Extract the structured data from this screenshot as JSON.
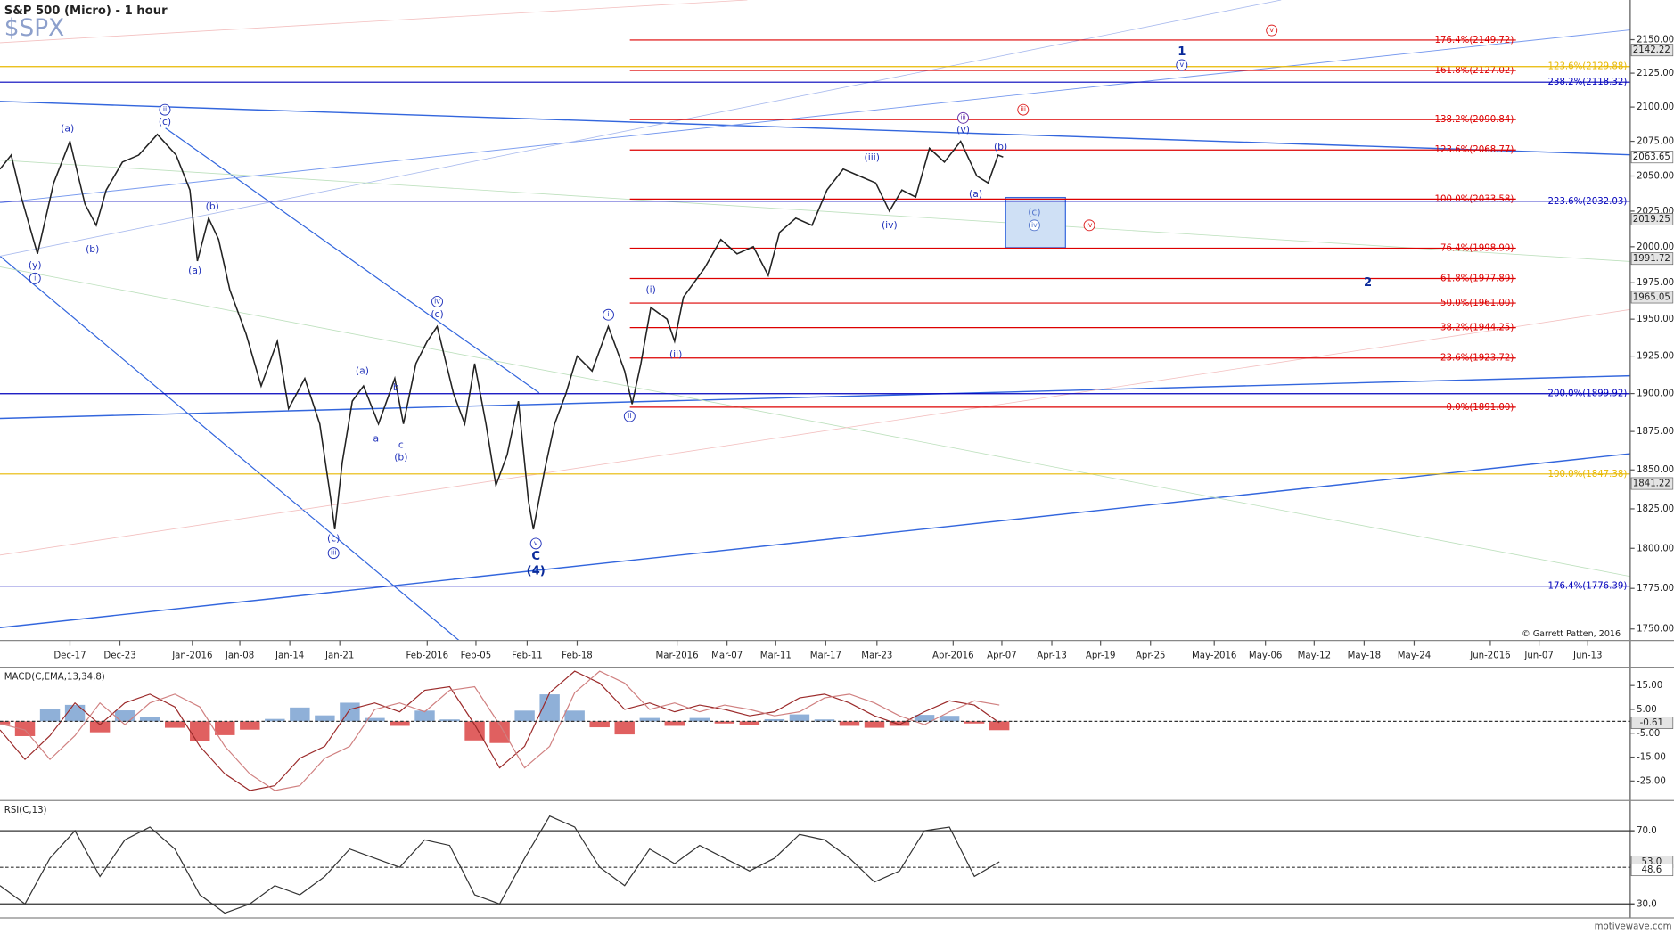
{
  "chart_data": [
    {
      "type": "price",
      "title": "S&P 500 (Micro) - 1 hour",
      "subtitle": "$SPX",
      "log": true,
      "color": "#222222",
      "xlim": [
        0,
        130.5
      ],
      "ylim": [
        1743,
        2180
      ],
      "xticks": [
        {
          "value": 5.6,
          "label": "Dec-17"
        },
        {
          "value": 9.6,
          "label": "Dec-23"
        },
        {
          "value": 15.4,
          "label": "Jan-2016"
        },
        {
          "value": 19.2,
          "label": "Jan-08"
        },
        {
          "value": 23.2,
          "label": "Jan-14"
        },
        {
          "value": 27.2,
          "label": "Jan-21"
        },
        {
          "value": 34.2,
          "label": "Feb-2016"
        },
        {
          "value": 38.1,
          "label": "Feb-05"
        },
        {
          "value": 42.2,
          "label": "Feb-11"
        },
        {
          "value": 46.2,
          "label": "Feb-18"
        },
        {
          "value": 54.2,
          "label": "Mar-2016"
        },
        {
          "value": 58.2,
          "label": "Mar-07"
        },
        {
          "value": 62.1,
          "label": "Mar-11"
        },
        {
          "value": 66.1,
          "label": "Mar-17"
        },
        {
          "value": 70.2,
          "label": "Mar-23"
        },
        {
          "value": 76.3,
          "label": "Apr-2016"
        },
        {
          "value": 80.2,
          "label": "Apr-07"
        },
        {
          "value": 84.2,
          "label": "Apr-13"
        },
        {
          "value": 88.1,
          "label": "Apr-19"
        },
        {
          "value": 92.1,
          "label": "Apr-25"
        },
        {
          "value": 97.2,
          "label": "May-2016"
        },
        {
          "value": 101.3,
          "label": "May-06"
        },
        {
          "value": 105.2,
          "label": "May-12"
        },
        {
          "value": 109.2,
          "label": "May-18"
        },
        {
          "value": 113.2,
          "label": "May-24"
        },
        {
          "value": 119.3,
          "label": "Jun-2016"
        },
        {
          "value": 123.2,
          "label": "Jun-07"
        },
        {
          "value": 127.1,
          "label": "Jun-13"
        }
      ],
      "yticks": [
        {
          "value": 2150,
          "label": "2150.00"
        },
        {
          "value": 2125,
          "label": "2125.00"
        },
        {
          "value": 2100,
          "label": "2100.00"
        },
        {
          "value": 2075,
          "label": "2075.00"
        },
        {
          "value": 2050,
          "label": "2050.00"
        },
        {
          "value": 2025,
          "label": "2025.00"
        },
        {
          "value": 2000,
          "label": "2000.00"
        },
        {
          "value": 1975,
          "label": "1975.00"
        },
        {
          "value": 1950,
          "label": "1950.00"
        },
        {
          "value": 1925,
          "label": "1925.00"
        },
        {
          "value": 1900,
          "label": "1900.00"
        },
        {
          "value": 1875,
          "label": "1875.00"
        },
        {
          "value": 1850,
          "label": "1850.00"
        },
        {
          "value": 1825,
          "label": "1825.00"
        },
        {
          "value": 1800,
          "label": "1800.00"
        },
        {
          "value": 1775,
          "label": "1775.00"
        },
        {
          "value": 1750,
          "label": "1750.00"
        }
      ],
      "x": [
        0,
        0.9,
        1.7,
        3.0,
        4.3,
        5.6,
        6.8,
        7.7,
        8.5,
        9.8,
        11.1,
        12.6,
        14.1,
        15.2,
        15.8,
        16.7,
        17.5,
        18.4,
        19.7,
        20.9,
        22.2,
        23.1,
        24.4,
        25.6,
        26.5,
        26.8,
        27.4,
        28.2,
        29.1,
        30.3,
        31.6,
        32.3,
        33.3,
        34.2,
        35.0,
        36.3,
        37.2,
        38.0,
        38.9,
        39.7,
        40.6,
        41.5,
        42.3,
        42.7,
        43.6,
        44.4,
        45.3,
        46.2,
        47.4,
        48.7,
        50.0,
        50.6,
        51.3,
        52.1,
        53.4,
        54.0,
        54.7,
        56.4,
        57.7,
        59.0,
        60.3,
        61.5,
        62.4,
        63.7,
        65.0,
        66.2,
        67.5,
        68.8,
        70.1,
        71.2,
        72.2,
        73.3,
        74.4,
        75.6,
        76.9,
        78.2,
        79.1,
        79.9,
        80.3
      ],
      "values": [
        2055,
        2065,
        2035,
        1995,
        2045,
        2075,
        2030,
        2015,
        2040,
        2060,
        2065,
        2080,
        2065,
        2040,
        1990,
        2020,
        2005,
        1970,
        1940,
        1905,
        1935,
        1890,
        1910,
        1880,
        1830,
        1812,
        1855,
        1895,
        1905,
        1880,
        1910,
        1880,
        1920,
        1935,
        1945,
        1900,
        1880,
        1920,
        1880,
        1840,
        1860,
        1895,
        1830,
        1812,
        1850,
        1880,
        1900,
        1925,
        1915,
        1945,
        1915,
        1893,
        1920,
        1958,
        1950,
        1935,
        1965,
        1985,
        2005,
        1995,
        2000,
        1980,
        2010,
        2020,
        2015,
        2040,
        2055,
        2050,
        2045,
        2025,
        2040,
        2035,
        2070,
        2060,
        2075,
        2050,
        2045,
        2065,
        2063.65
      ],
      "fib_levels": [
        {
          "value": 2149.72,
          "label": "176.4%(2149.72)",
          "color": "#dd0000",
          "span": "partial"
        },
        {
          "value": 2127.02,
          "label": "161.8%(2127.02)",
          "color": "#dd0000",
          "span": "partial"
        },
        {
          "value": 2090.84,
          "label": "138.2%(2090.84)",
          "color": "#dd0000",
          "span": "partial"
        },
        {
          "value": 2068.77,
          "label": "123.6%(2068.77)",
          "color": "#dd0000",
          "span": "partial"
        },
        {
          "value": 2033.58,
          "label": "100.0%(2033.58)",
          "color": "#dd0000",
          "span": "partial"
        },
        {
          "value": 1998.99,
          "label": "76.4%(1998.99)",
          "color": "#dd0000",
          "span": "partial"
        },
        {
          "value": 1977.89,
          "label": "61.8%(1977.89)",
          "color": "#dd0000",
          "span": "partial"
        },
        {
          "value": 1961.0,
          "label": "50.0%(1961.00)",
          "color": "#dd0000",
          "span": "partial"
        },
        {
          "value": 1944.25,
          "label": "38.2%(1944.25)",
          "color": "#dd0000",
          "span": "partial"
        },
        {
          "value": 1923.72,
          "label": "23.6%(1923.72)",
          "color": "#dd0000",
          "span": "partial"
        },
        {
          "value": 1891.0,
          "label": "0.0%(1891.00)",
          "color": "#dd0000",
          "span": "partial"
        },
        {
          "value": 2129.88,
          "label": "123.6%(2129.88)",
          "color": "#e8b800",
          "span": "full"
        },
        {
          "value": 2118.32,
          "label": "238.2%(2118.32)",
          "color": "#0000bb",
          "span": "full"
        },
        {
          "value": 2032.03,
          "label": "223.6%(2032.03)",
          "color": "#0000bb",
          "span": "full"
        },
        {
          "value": 1899.92,
          "label": "200.0%(1899.92)",
          "color": "#0000bb",
          "span": "full"
        },
        {
          "value": 1847.38,
          "label": "100.0%(1847.38)",
          "color": "#e8b800",
          "span": "full"
        },
        {
          "value": 1776.39,
          "label": "176.4%(1776.39)",
          "color": "#0000bb",
          "span": "full"
        }
      ],
      "price_tags": [
        2142.22,
        2063.65,
        2019.25,
        1991.72,
        1965.05,
        1841.22
      ],
      "annotations": [
        {
          "text": "(a)",
          "x": 5.4,
          "y": 2084,
          "color": "#2233bb"
        },
        {
          "text": "(b)",
          "x": 7.4,
          "y": 1998,
          "color": "#2233bb"
        },
        {
          "text": "(y)",
          "x": 2.8,
          "y": 1987,
          "color": "#2233bb"
        },
        {
          "text": "i",
          "x": 2.8,
          "y": 1978,
          "color": "#2233bb",
          "circled": true
        },
        {
          "text": "ii",
          "x": 13.2,
          "y": 2098,
          "color": "#2233bb",
          "circled": true
        },
        {
          "text": "(c)",
          "x": 13.2,
          "y": 2089,
          "color": "#2233bb"
        },
        {
          "text": "(b)",
          "x": 17.0,
          "y": 2028,
          "color": "#2233bb"
        },
        {
          "text": "(a)",
          "x": 15.6,
          "y": 1983,
          "color": "#2233bb"
        },
        {
          "text": "(a)",
          "x": 29.0,
          "y": 1915,
          "color": "#2233bb"
        },
        {
          "text": "a",
          "x": 30.1,
          "y": 1870,
          "color": "#2233bb"
        },
        {
          "text": "b",
          "x": 31.7,
          "y": 1904,
          "color": "#2233bb"
        },
        {
          "text": "c",
          "x": 32.1,
          "y": 1866,
          "color": "#2233bb"
        },
        {
          "text": "(b)",
          "x": 32.1,
          "y": 1858,
          "color": "#2233bb"
        },
        {
          "text": "iv",
          "x": 35.0,
          "y": 1962,
          "color": "#2233bb",
          "circled": true
        },
        {
          "text": "(c)",
          "x": 35.0,
          "y": 1953,
          "color": "#2233bb"
        },
        {
          "text": "(c)",
          "x": 26.7,
          "y": 1806,
          "color": "#2233bb"
        },
        {
          "text": "iii",
          "x": 26.7,
          "y": 1797,
          "color": "#2233bb",
          "circled": true
        },
        {
          "text": "v",
          "x": 42.9,
          "y": 1803,
          "color": "#2233bb",
          "circled": true
        },
        {
          "text": "C",
          "x": 42.9,
          "y": 1795,
          "color": "#0a2a9a",
          "bold": true
        },
        {
          "text": "(4)",
          "x": 42.9,
          "y": 1786,
          "color": "#0a2a9a",
          "bold": true
        },
        {
          "text": "i",
          "x": 48.7,
          "y": 1953,
          "color": "#2233bb",
          "circled": true
        },
        {
          "text": "(i)",
          "x": 52.1,
          "y": 1970,
          "color": "#2233bb"
        },
        {
          "text": "(ii)",
          "x": 54.1,
          "y": 1926,
          "color": "#2233bb"
        },
        {
          "text": "ii",
          "x": 50.4,
          "y": 1885,
          "color": "#2233bb",
          "circled": true
        },
        {
          "text": "(iii)",
          "x": 69.8,
          "y": 2063,
          "color": "#2233bb"
        },
        {
          "text": "(iv)",
          "x": 71.2,
          "y": 2015,
          "color": "#2233bb"
        },
        {
          "text": "iii",
          "x": 77.1,
          "y": 2092,
          "color": "#6633aa",
          "circled": true
        },
        {
          "text": "(v)",
          "x": 77.1,
          "y": 2083,
          "color": "#2233bb"
        },
        {
          "text": "(b)",
          "x": 80.1,
          "y": 2071,
          "color": "#2233bb"
        },
        {
          "text": "(a)",
          "x": 78.1,
          "y": 2037,
          "color": "#2233bb"
        },
        {
          "text": "(c)",
          "x": 82.8,
          "y": 2024,
          "color": "#5577cc"
        },
        {
          "text": "iv",
          "x": 82.8,
          "y": 2015,
          "color": "#5577cc",
          "circled": true
        },
        {
          "text": "iii",
          "x": 81.9,
          "y": 2098,
          "color": "#dd2222",
          "circled": true
        },
        {
          "text": "iv",
          "x": 87.2,
          "y": 2015,
          "color": "#dd2222",
          "circled": true
        },
        {
          "text": "v",
          "x": 101.8,
          "y": 2157,
          "color": "#dd2222",
          "circled": true
        },
        {
          "text": "1",
          "x": 94.6,
          "y": 2141,
          "color": "#0a2a9a",
          "bold": true
        },
        {
          "text": "v",
          "x": 94.6,
          "y": 2131,
          "color": "#2233bb",
          "circled": true
        },
        {
          "text": "2",
          "x": 109.5,
          "y": 1975,
          "color": "#0a2a9a",
          "bold": true
        }
      ],
      "credit": "© Garrett Patten, 2016"
    },
    {
      "type": "macd",
      "title": "MACD(C,EMA,13,34,8)",
      "ylim": [
        -32.3,
        21.8
      ],
      "ref_line": 0,
      "yticks": [
        {
          "value": 15,
          "label": "15.00"
        },
        {
          "value": 5,
          "label": "5.00"
        },
        {
          "value": -5,
          "label": "-5.00"
        },
        {
          "value": -15,
          "label": "-15.00"
        },
        {
          "value": -25,
          "label": "-25.00"
        }
      ],
      "x": [
        0,
        2,
        4,
        6,
        8,
        10,
        12,
        14,
        16,
        18,
        20,
        22,
        24,
        26,
        28,
        30,
        32,
        34,
        36,
        38,
        40,
        42,
        44,
        46,
        48,
        50,
        52,
        54,
        56,
        58,
        60,
        62,
        64,
        66,
        68,
        70,
        72,
        74,
        76,
        78,
        80
      ],
      "series": [
        {
          "color": "#9b2a2a",
          "values": [
            -3.6,
            -16,
            -6,
            7.7,
            -1.4,
            7.7,
            11.4,
            6,
            -10.5,
            -22,
            -29,
            -27,
            -15.5,
            -10.5,
            5,
            7.7,
            4,
            13,
            14.5,
            -1.4,
            -19.5,
            -10.5,
            12,
            21,
            16,
            5,
            7.7,
            4,
            6.8,
            5,
            2.3,
            4,
            9.8,
            11.4,
            7.7,
            2.3,
            -1.4,
            4,
            8.6,
            6.8,
            -0.61
          ]
        },
        {
          "color": "#d08080",
          "values": [
            -1,
            -3.6,
            -16,
            -6,
            7.7,
            -1.4,
            7.7,
            11.4,
            6,
            -10.5,
            -22,
            -29,
            -27,
            -15.5,
            -10.5,
            5,
            7.7,
            4,
            13,
            14.5,
            -1.4,
            -19.5,
            -10.5,
            12,
            21,
            16,
            5,
            7.7,
            4,
            6.8,
            5,
            2.3,
            4,
            9.8,
            11.4,
            7.7,
            2.3,
            -1.4,
            4,
            8.6,
            6.8
          ]
        }
      ],
      "histogram": {
        "pos_color": "#8fb0d8",
        "neg_color": "#e06060",
        "values": [
          -1.3,
          -6.2,
          5,
          6.9,
          -4.6,
          4.6,
          1.9,
          -2.7,
          -8.3,
          -5.8,
          -3.5,
          1,
          5.8,
          2.5,
          7.8,
          1.4,
          -1.9,
          4.5,
          0.8,
          -8,
          -9.1,
          4.5,
          11.3,
          4.5,
          -2.5,
          -5.5,
          1.4,
          -1.9,
          1.4,
          -0.9,
          -1.4,
          0.9,
          2.9,
          0.8,
          -1.9,
          -2.7,
          -1.9,
          2.7,
          2.3,
          -0.9,
          -3.7
        ]
      }
    },
    {
      "type": "rsi",
      "title": "RSI(C,13)",
      "ylim": [
        23.5,
        85.3
      ],
      "ref_line": 50,
      "yticks": [
        {
          "value": 70,
          "label": "70.0"
        },
        {
          "value": 30,
          "label": "30.0"
        }
      ],
      "x": [
        0,
        2,
        4,
        6,
        8,
        10,
        12,
        14,
        16,
        18,
        20,
        22,
        24,
        26,
        28,
        30,
        32,
        34,
        36,
        38,
        40,
        42,
        44,
        46,
        48,
        50,
        52,
        54,
        56,
        58,
        60,
        62,
        64,
        66,
        68,
        70,
        72,
        74,
        76,
        78,
        80
      ],
      "color": "#333333",
      "values": [
        40,
        30,
        55,
        70,
        45,
        65,
        72,
        60,
        35,
        25,
        30,
        40,
        35,
        45,
        60,
        55,
        50,
        65,
        62,
        35,
        30,
        55,
        78,
        72,
        50,
        40,
        60,
        52,
        62,
        55,
        48,
        55,
        68,
        65,
        55,
        42,
        48,
        70,
        72,
        45,
        53
      ],
      "tags": [
        {
          "value": 53,
          "label": "53.0"
        },
        {
          "value": 48.6,
          "label": "48.6"
        }
      ]
    }
  ],
  "footer": "motivewave.com"
}
